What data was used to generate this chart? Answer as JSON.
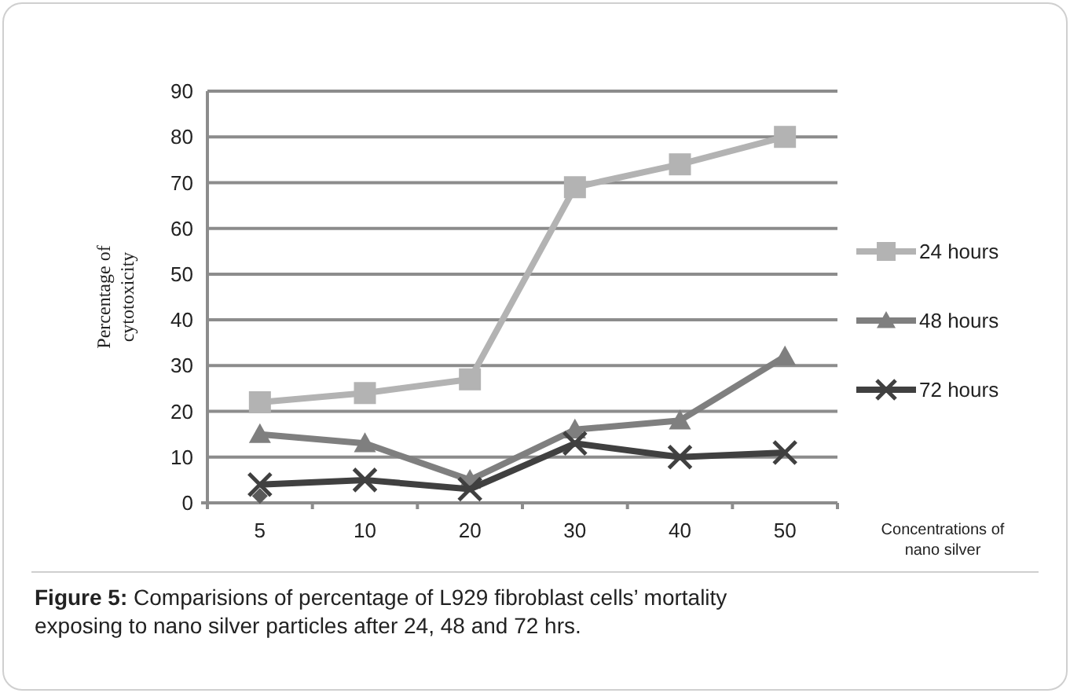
{
  "chart_data": {
    "type": "line",
    "xlabel": "Concentrations of nano silver",
    "ylabel": "Percentage of cytotoxicity",
    "categories": [
      "5",
      "10",
      "20",
      "30",
      "40",
      "50"
    ],
    "series": [
      {
        "name": "24 hours",
        "color": "#b3b3b3",
        "marker": "square",
        "values": [
          22,
          24,
          27,
          69,
          74,
          80
        ]
      },
      {
        "name": "48 hours",
        "color": "#7f7f7f",
        "marker": "triangle",
        "values": [
          15,
          13,
          5,
          16,
          18,
          32
        ]
      },
      {
        "name": "72 hours",
        "color": "#404040",
        "marker": "cross",
        "values": [
          4,
          5,
          3,
          13,
          10,
          11
        ]
      },
      {
        "type": "scatter",
        "color": "#5a5a5a",
        "marker": "diamond",
        "values": [
          1.5,
          null,
          null,
          null,
          null,
          null
        ]
      }
    ],
    "ylim": [
      0,
      90
    ],
    "yticks": [
      0,
      10,
      20,
      30,
      40,
      50,
      60,
      70,
      80,
      90
    ],
    "grid": "y",
    "legend": "right",
    "annotations": [
      "Figure 5: Comparisions of percentage of L929 fibroblast cells’ mortality exposing to nano silver particles after 24, 48 and 72 hrs."
    ]
  }
}
